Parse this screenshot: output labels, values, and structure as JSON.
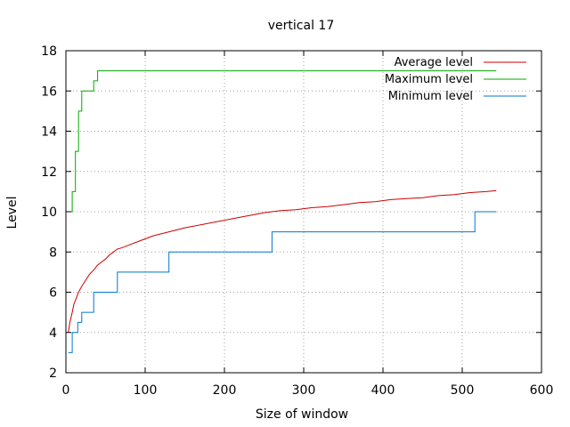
{
  "chart_data": {
    "type": "line",
    "title": "vertical 17",
    "xlabel": "Size of window",
    "ylabel": "Level",
    "xlim": [
      0,
      600
    ],
    "ylim": [
      2,
      18
    ],
    "xticks": [
      0,
      100,
      200,
      300,
      400,
      500,
      600
    ],
    "yticks": [
      2,
      4,
      6,
      8,
      10,
      12,
      14,
      16,
      18
    ],
    "grid": true,
    "legend_position": "top-right",
    "series": [
      {
        "name": "Average level",
        "color": "#cc0000",
        "step": false,
        "x": [
          3,
          5,
          8,
          10,
          13,
          16,
          20,
          25,
          30,
          35,
          40,
          45,
          50,
          55,
          60,
          65,
          70,
          80,
          90,
          100,
          110,
          120,
          130,
          140,
          150,
          170,
          190,
          210,
          230,
          250,
          270,
          290,
          310,
          330,
          350,
          370,
          390,
          410,
          430,
          450,
          470,
          490,
          510,
          530,
          543
        ],
        "y": [
          4.0,
          4.5,
          5.0,
          5.4,
          5.7,
          6.0,
          6.3,
          6.6,
          6.9,
          7.1,
          7.35,
          7.5,
          7.65,
          7.85,
          8.0,
          8.15,
          8.2,
          8.35,
          8.5,
          8.65,
          8.8,
          8.9,
          9.0,
          9.1,
          9.2,
          9.35,
          9.5,
          9.65,
          9.8,
          9.95,
          10.05,
          10.1,
          10.2,
          10.25,
          10.35,
          10.45,
          10.5,
          10.6,
          10.65,
          10.7,
          10.8,
          10.85,
          10.95,
          11.0,
          11.05
        ]
      },
      {
        "name": "Maximum level",
        "color": "#00aa00",
        "step": true,
        "x": [
          3,
          8,
          12,
          16,
          20,
          35,
          40,
          543
        ],
        "y": [
          10,
          11,
          13,
          15,
          16,
          16.5,
          17,
          17
        ]
      },
      {
        "name": "Minimum level",
        "color": "#0077cc",
        "step": true,
        "x": [
          3,
          8,
          15,
          20,
          30,
          35,
          60,
          65,
          125,
          130,
          256,
          260,
          512,
          516,
          543
        ],
        "y": [
          3,
          4,
          4.5,
          5,
          5,
          6,
          6,
          7,
          7,
          8,
          8,
          9,
          9,
          10,
          10
        ]
      }
    ]
  }
}
